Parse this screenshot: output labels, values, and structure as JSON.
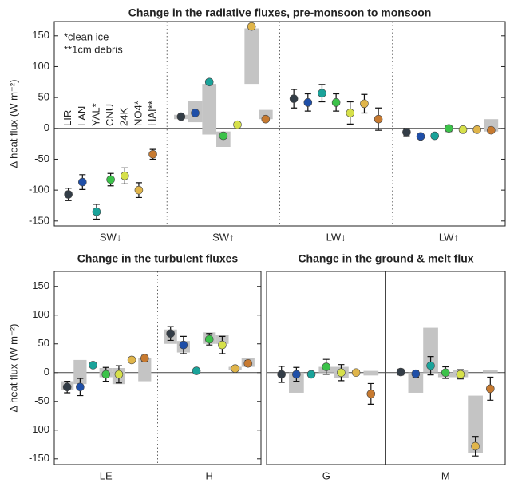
{
  "chart_data": [
    {
      "type": "dot",
      "title": "Change in the radiative fluxes, pre-monsoon to monsoon",
      "ylabel": "Δ heat flux (W m⁻²)",
      "annotations": [
        "*clean ice",
        "**1cm debris"
      ],
      "categories": [
        "SW↓",
        "SW↑",
        "LW↓",
        "LW↑"
      ],
      "divider": "dotted",
      "ylim": [
        -158,
        173
      ],
      "yticks": [
        -150,
        -100,
        -50,
        0,
        50,
        100,
        150
      ],
      "series": [
        {
          "name": "LIR",
          "color": "#333d47",
          "values": [
            -107,
            19,
            48,
            -6
          ],
          "errors": [
            10,
            3,
            15,
            6
          ],
          "ranges": [
            null,
            [
              15,
              22
            ],
            null,
            null
          ]
        },
        {
          "name": "LAN",
          "color": "#1f4fa8",
          "values": [
            -87,
            25,
            42,
            -13
          ],
          "errors": [
            12,
            4,
            14,
            3
          ],
          "ranges": [
            null,
            [
              10,
              45
            ],
            null,
            null
          ]
        },
        {
          "name": "YAL*",
          "color": "#1aa39a",
          "values": [
            -135,
            75,
            57,
            -12
          ],
          "errors": [
            12,
            4,
            14,
            4
          ],
          "ranges": [
            null,
            [
              -10,
              72
            ],
            null,
            null
          ]
        },
        {
          "name": "CNU",
          "color": "#3cc24a",
          "values": [
            -83,
            -12,
            42,
            0
          ],
          "errors": [
            10,
            4,
            14,
            5
          ],
          "ranges": [
            null,
            [
              -30,
              -5
            ],
            null,
            null
          ]
        },
        {
          "name": "24K",
          "color": "#d6e04a",
          "values": [
            -77,
            6,
            25,
            -2
          ],
          "errors": [
            13,
            2,
            18,
            4
          ],
          "ranges": [
            null,
            null,
            null,
            null
          ]
        },
        {
          "name": "NO4*",
          "color": "#e0b54a",
          "values": [
            -100,
            165,
            40,
            -2
          ],
          "errors": [
            12,
            3,
            15,
            2
          ],
          "ranges": [
            null,
            [
              72,
              162
            ],
            null,
            null
          ]
        },
        {
          "name": "HAI**",
          "color": "#c77a30",
          "values": [
            -42,
            15,
            15,
            -3
          ],
          "errors": [
            8,
            3,
            18,
            3
          ],
          "ranges": [
            null,
            [
              15,
              30
            ],
            null,
            [
              -5,
              15
            ]
          ]
        }
      ]
    },
    {
      "type": "dot",
      "title": "Change in the turbulent fluxes",
      "ylabel": "Δ heat flux (W m⁻²)",
      "categories": [
        "LE",
        "H"
      ],
      "divider": "dotted",
      "ylim": [
        -160,
        176
      ],
      "yticks": [
        -150,
        -100,
        -50,
        0,
        50,
        100,
        150
      ],
      "series": [
        {
          "color": "#333d47",
          "values": [
            -25,
            68
          ],
          "errors": [
            10,
            12
          ],
          "ranges": [
            [
              -30,
              -15
            ],
            [
              50,
              75
            ]
          ]
        },
        {
          "color": "#1f4fa8",
          "values": [
            -25,
            48
          ],
          "errors": [
            15,
            15
          ],
          "ranges": [
            [
              -20,
              22
            ],
            [
              35,
              55
            ]
          ]
        },
        {
          "color": "#1aa39a",
          "values": [
            13,
            3
          ],
          "errors": [
            3,
            2
          ],
          "ranges": [
            null,
            null
          ]
        },
        {
          "color": "#3cc24a",
          "values": [
            -3,
            58
          ],
          "errors": [
            12,
            10
          ],
          "ranges": [
            [
              -8,
              8
            ],
            [
              50,
              70
            ]
          ]
        },
        {
          "color": "#d6e04a",
          "values": [
            -3,
            48
          ],
          "errors": [
            15,
            15
          ],
          "ranges": [
            [
              -20,
              8
            ],
            [
              50,
              65
            ]
          ]
        },
        {
          "color": "#e0b54a",
          "values": [
            22,
            7
          ],
          "errors": [
            3,
            3
          ],
          "ranges": [
            null,
            [
              5,
              10
            ]
          ]
        },
        {
          "color": "#c77a30",
          "values": [
            25,
            16
          ],
          "errors": [
            5,
            5
          ],
          "ranges": [
            [
              -15,
              25
            ],
            [
              10,
              25
            ]
          ]
        }
      ]
    },
    {
      "type": "dot",
      "title": "Change in the ground & melt flux",
      "categories": [
        "G",
        "M"
      ],
      "divider": "solid",
      "ylim": [
        -160,
        176
      ],
      "series": [
        {
          "color": "#333d47",
          "values": [
            -3,
            1
          ],
          "errors": [
            14,
            5
          ],
          "ranges": [
            null,
            null
          ]
        },
        {
          "color": "#1f4fa8",
          "values": [
            -3,
            -2
          ],
          "errors": [
            12,
            6
          ],
          "ranges": [
            [
              -35,
              0
            ],
            [
              -35,
              0
            ]
          ]
        },
        {
          "color": "#1aa39a",
          "values": [
            -3,
            12
          ],
          "errors": [
            3,
            16
          ],
          "ranges": [
            null,
            [
              0,
              78
            ]
          ]
        },
        {
          "color": "#3cc24a",
          "values": [
            10,
            0
          ],
          "errors": [
            13,
            10
          ],
          "ranges": [
            [
              0,
              10
            ],
            [
              -8,
              0
            ]
          ]
        },
        {
          "color": "#d6e04a",
          "values": [
            0,
            -3
          ],
          "errors": [
            14,
            8
          ],
          "ranges": [
            [
              -10,
              10
            ],
            [
              -8,
              5
            ]
          ]
        },
        {
          "color": "#e0b54a",
          "values": [
            0,
            -128
          ],
          "errors": [
            2,
            17
          ],
          "ranges": [
            null,
            [
              -140,
              -40
            ]
          ]
        },
        {
          "color": "#c77a30",
          "values": [
            -37,
            -28
          ],
          "errors": [
            18,
            20
          ],
          "ranges": [
            [
              -5,
              3
            ],
            [
              0,
              5
            ]
          ]
        }
      ]
    }
  ]
}
